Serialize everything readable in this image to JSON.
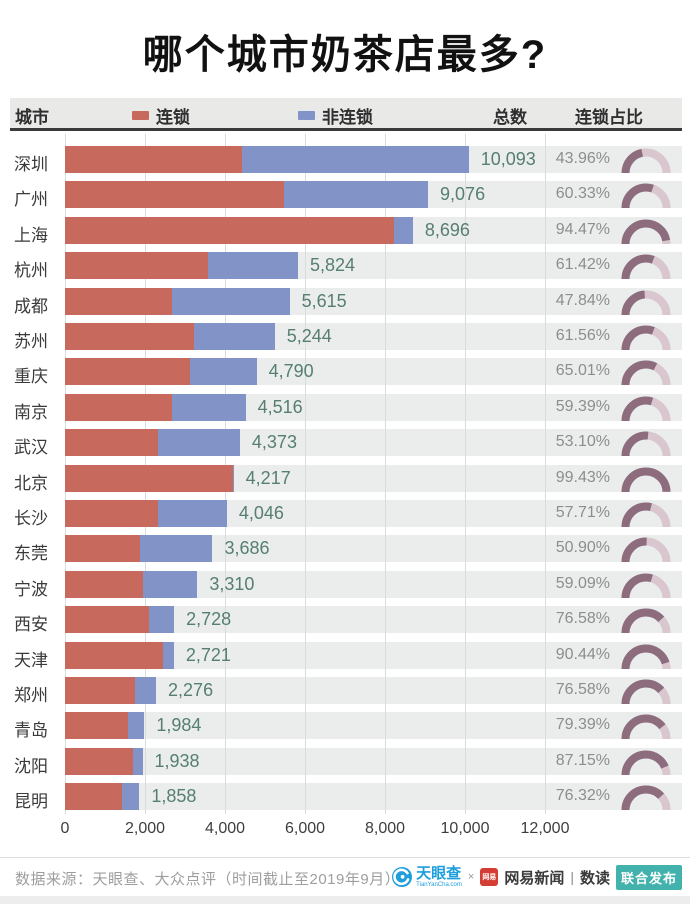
{
  "title": "哪个城市奶茶店最多?",
  "header": {
    "city": "城市",
    "chain": "连锁",
    "non_chain": "非连锁",
    "total": "总数",
    "chain_share": "连锁占比"
  },
  "colors": {
    "chain": "#c8695e",
    "non_chain": "#8193c7",
    "band": "#eaedec",
    "gridline": "#d8dcda",
    "total_text": "#567f6f",
    "pct_text": "#8d8d8d",
    "gauge_fill": "#8d6c7e",
    "gauge_rest": "#d9c6ce",
    "tianyancha_blue": "#1e9edc",
    "netease_red": "#d43d33",
    "joint_badge_teal": "#43b2ad"
  },
  "axis": {
    "max": 12000,
    "ticks": [
      {
        "value": 0,
        "label": "0"
      },
      {
        "value": 2000,
        "label": "2,000"
      },
      {
        "value": 4000,
        "label": "4,000"
      },
      {
        "value": 6000,
        "label": "6,000"
      },
      {
        "value": 8000,
        "label": "8,000"
      },
      {
        "value": 10000,
        "label": "10,000"
      },
      {
        "value": 12000,
        "label": "12,000"
      }
    ]
  },
  "rows": [
    {
      "city": "深圳",
      "total": 10093,
      "total_label": "10,093",
      "chain_pct": 43.96,
      "chain_pct_label": "43.96%"
    },
    {
      "city": "广州",
      "total": 9076,
      "total_label": "9,076",
      "chain_pct": 60.33,
      "chain_pct_label": "60.33%"
    },
    {
      "city": "上海",
      "total": 8696,
      "total_label": "8,696",
      "chain_pct": 94.47,
      "chain_pct_label": "94.47%"
    },
    {
      "city": "杭州",
      "total": 5824,
      "total_label": "5,824",
      "chain_pct": 61.42,
      "chain_pct_label": "61.42%"
    },
    {
      "city": "成都",
      "total": 5615,
      "total_label": "5,615",
      "chain_pct": 47.84,
      "chain_pct_label": "47.84%"
    },
    {
      "city": "苏州",
      "total": 5244,
      "total_label": "5,244",
      "chain_pct": 61.56,
      "chain_pct_label": "61.56%"
    },
    {
      "city": "重庆",
      "total": 4790,
      "total_label": "4,790",
      "chain_pct": 65.01,
      "chain_pct_label": "65.01%"
    },
    {
      "city": "南京",
      "total": 4516,
      "total_label": "4,516",
      "chain_pct": 59.39,
      "chain_pct_label": "59.39%"
    },
    {
      "city": "武汉",
      "total": 4373,
      "total_label": "4,373",
      "chain_pct": 53.1,
      "chain_pct_label": "53.10%"
    },
    {
      "city": "北京",
      "total": 4217,
      "total_label": "4,217",
      "chain_pct": 99.43,
      "chain_pct_label": "99.43%"
    },
    {
      "city": "长沙",
      "total": 4046,
      "total_label": "4,046",
      "chain_pct": 57.71,
      "chain_pct_label": "57.71%"
    },
    {
      "city": "东莞",
      "total": 3686,
      "total_label": "3,686",
      "chain_pct": 50.9,
      "chain_pct_label": "50.90%"
    },
    {
      "city": "宁波",
      "total": 3310,
      "total_label": "3,310",
      "chain_pct": 59.09,
      "chain_pct_label": "59.09%"
    },
    {
      "city": "西安",
      "total": 2728,
      "total_label": "2,728",
      "chain_pct": 76.58,
      "chain_pct_label": "76.58%"
    },
    {
      "city": "天津",
      "total": 2721,
      "total_label": "2,721",
      "chain_pct": 90.44,
      "chain_pct_label": "90.44%"
    },
    {
      "city": "郑州",
      "total": 2276,
      "total_label": "2,276",
      "chain_pct": 76.58,
      "chain_pct_label": "76.58%"
    },
    {
      "city": "青岛",
      "total": 1984,
      "total_label": "1,984",
      "chain_pct": 79.39,
      "chain_pct_label": "79.39%"
    },
    {
      "city": "沈阳",
      "total": 1938,
      "total_label": "1,938",
      "chain_pct": 87.15,
      "chain_pct_label": "87.15%"
    },
    {
      "city": "昆明",
      "total": 1858,
      "total_label": "1,858",
      "chain_pct": 76.32,
      "chain_pct_label": "76.32%"
    }
  ],
  "footer": {
    "source": "数据来源：天眼查、大众点评（时间截止至2019年9月）",
    "tianyancha_name": "天眼查",
    "tianyancha_sub": "TianYanCha.com",
    "cross": "×",
    "netease_logo": "网易",
    "netease_news": "网易新闻",
    "pipe": "|",
    "shudu": "数读",
    "joint_release": "联合发布"
  },
  "chart_data": {
    "type": "bar",
    "orientation": "horizontal",
    "stacked": true,
    "title": "哪个城市奶茶店最多?",
    "categories": [
      "深圳",
      "广州",
      "上海",
      "杭州",
      "成都",
      "苏州",
      "重庆",
      "南京",
      "武汉",
      "北京",
      "长沙",
      "东莞",
      "宁波",
      "西安",
      "天津",
      "郑州",
      "青岛",
      "沈阳",
      "昆明"
    ],
    "series": [
      {
        "name": "连锁",
        "color": "#c8695e",
        "values": [
          4437,
          5476,
          8215,
          3577,
          2686,
          3228,
          3114,
          2682,
          2322,
          4193,
          2335,
          1876,
          1956,
          2089,
          2461,
          1743,
          1575,
          1689,
          1418
        ]
      },
      {
        "name": "非连锁",
        "color": "#8193c7",
        "values": [
          5656,
          3600,
          481,
          2247,
          2929,
          2016,
          1676,
          1834,
          2051,
          24,
          1711,
          1810,
          1354,
          639,
          260,
          533,
          409,
          249,
          440
        ]
      }
    ],
    "totals": [
      10093,
      9076,
      8696,
      5824,
      5615,
      5244,
      4790,
      4516,
      4373,
      4217,
      4046,
      3686,
      3310,
      2728,
      2721,
      2276,
      1984,
      1938,
      1858
    ],
    "chain_share_pct": [
      43.96,
      60.33,
      94.47,
      61.42,
      47.84,
      61.56,
      65.01,
      59.39,
      53.1,
      99.43,
      57.71,
      50.9,
      59.09,
      76.58,
      90.44,
      76.58,
      79.39,
      87.15,
      76.32
    ],
    "xlim": [
      0,
      12000
    ],
    "x_ticks": [
      0,
      2000,
      4000,
      6000,
      8000,
      10000,
      12000
    ],
    "legend_position": "top",
    "grid": "vertical",
    "gauge_column": "chain_share_pct semicircle gauges, filled clockwise from left"
  }
}
